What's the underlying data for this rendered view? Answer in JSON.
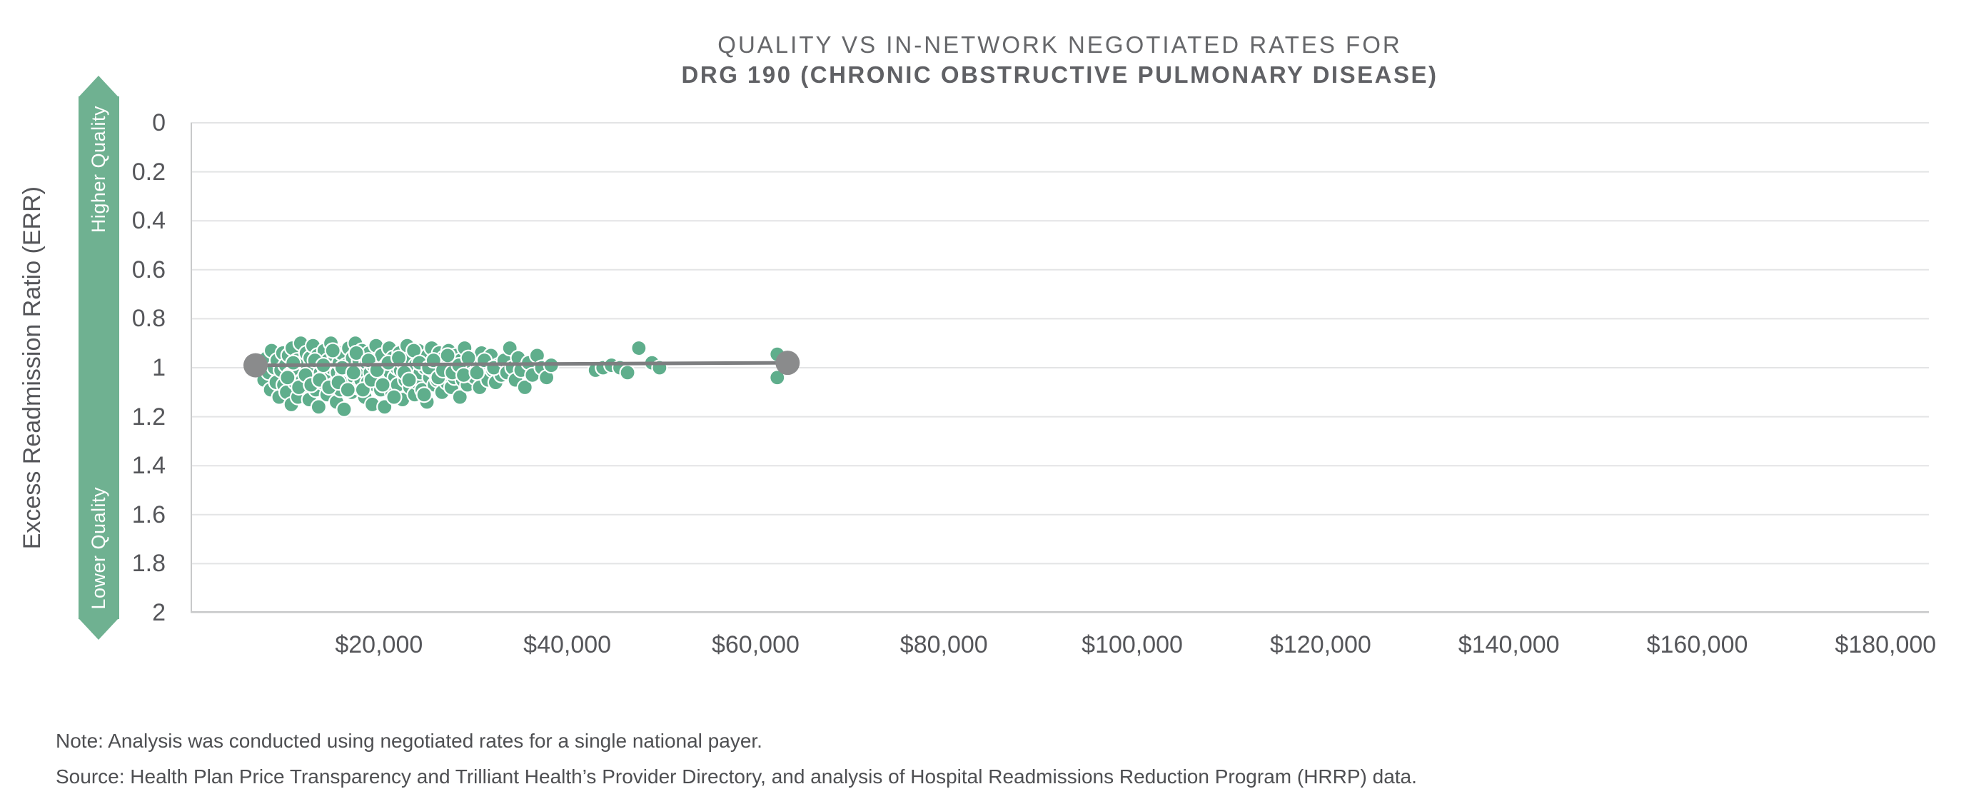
{
  "title": {
    "line1": "QUALITY VS IN-NETWORK NEGOTIATED RATES FOR",
    "line2": "DRG 190 (CHRONIC OBSTRUCTIVE PULMONARY DISEASE)"
  },
  "quality_arrow": {
    "top_label": "Higher Quality",
    "bottom_label": "Lower Quality",
    "color": "#6fb191"
  },
  "y_axis": {
    "title": "Excess Readmission Ratio (ERR)",
    "tick_labels": [
      "0",
      "0.2",
      "0.4",
      "0.6",
      "0.8",
      "1",
      "1.2",
      "1.4",
      "1.6",
      "1.8",
      "2"
    ],
    "tick_values": [
      0,
      0.2,
      0.4,
      0.6,
      0.8,
      1,
      1.2,
      1.4,
      1.6,
      1.8,
      2
    ]
  },
  "x_axis": {
    "tick_labels": [
      "$20,000",
      "$40,000",
      "$60,000",
      "$80,000",
      "$100,000",
      "$120,000",
      "$140,000",
      "$160,000",
      "$180,000"
    ],
    "tick_values": [
      20000,
      40000,
      60000,
      80000,
      100000,
      120000,
      140000,
      160000,
      180000
    ]
  },
  "notes": {
    "note": "Note: Analysis was conducted using negotiated rates for a single national payer.",
    "source": "Source: Health Plan Price Transparency and Trilliant Health’s Provider Directory, and analysis of Hospital Readmissions Reduction Program (HRRP) data."
  },
  "colors": {
    "point_fill": "#5fae8c",
    "point_stroke": "#ffffff",
    "trend_line": "#7d7e80",
    "trend_endpoint": "#8a8b8c",
    "gridline": "#e3e4e5",
    "axis_border": "#c8c9ca",
    "title_text": "#66676a",
    "tick_text": "#55565a",
    "arrow_green": "#6fb191"
  },
  "chart_data": {
    "type": "scatter",
    "title": "QUALITY VS IN-NETWORK NEGOTIATED RATES FOR DRG 190 (CHRONIC OBSTRUCTIVE PULMONARY DISEASE)",
    "xlabel": "",
    "ylabel": "Excess Readmission Ratio (ERR)",
    "x_range": [
      0,
      184600
    ],
    "y_range": [
      0,
      2
    ],
    "y_axis_inverted": true,
    "grid": "horizontal-only",
    "legend": "none",
    "trend_line": {
      "points": [
        [
          6900,
          0.99
        ],
        [
          63400,
          0.98
        ]
      ]
    },
    "points": [
      [
        7600,
        0.99
      ],
      [
        7800,
        1.05
      ],
      [
        8100,
        0.96
      ],
      [
        8300,
        1.02
      ],
      [
        8500,
        1.09
      ],
      [
        8600,
        0.93
      ],
      [
        8900,
        1.0
      ],
      [
        9100,
        1.06
      ],
      [
        9200,
        0.97
      ],
      [
        9400,
        1.12
      ],
      [
        9600,
        1.01
      ],
      [
        9800,
        0.94
      ],
      [
        9900,
        1.07
      ],
      [
        10100,
        0.99
      ],
      [
        10200,
        1.1
      ],
      [
        10400,
        0.95
      ],
      [
        10500,
        1.03
      ],
      [
        10700,
        1.15
      ],
      [
        10800,
        0.92
      ],
      [
        11000,
        1.0
      ],
      [
        11100,
        1.06
      ],
      [
        11300,
        0.97
      ],
      [
        11400,
        1.12
      ],
      [
        11600,
        1.02
      ],
      [
        11700,
        0.9
      ],
      [
        11900,
        1.05
      ],
      [
        12000,
        0.98
      ],
      [
        12100,
        1.08
      ],
      [
        12300,
        0.94
      ],
      [
        12400,
        1.01
      ],
      [
        12600,
        1.13
      ],
      [
        12700,
        0.96
      ],
      [
        12900,
        1.04
      ],
      [
        13000,
        0.91
      ],
      [
        13100,
        1.0
      ],
      [
        13300,
        1.09
      ],
      [
        13500,
        0.95
      ],
      [
        13600,
        1.16
      ],
      [
        13800,
        1.02
      ],
      [
        13900,
        0.98
      ],
      [
        14000,
        1.06
      ],
      [
        14200,
        0.93
      ],
      [
        14300,
        1.01
      ],
      [
        14500,
        1.11
      ],
      [
        14600,
        0.97
      ],
      [
        14800,
        1.04
      ],
      [
        14900,
        0.9
      ],
      [
        15000,
        1.0
      ],
      [
        15200,
        1.07
      ],
      [
        15300,
        0.95
      ],
      [
        15500,
        1.14
      ],
      [
        15600,
        1.02
      ],
      [
        15800,
        0.98
      ],
      [
        15900,
        1.09
      ],
      [
        16000,
        0.94
      ],
      [
        16200,
        1.03
      ],
      [
        16300,
        1.17
      ],
      [
        16500,
        0.99
      ],
      [
        16600,
        1.06
      ],
      [
        16800,
        0.92
      ],
      [
        16900,
        1.01
      ],
      [
        17100,
        1.1
      ],
      [
        17200,
        0.96
      ],
      [
        17400,
        1.04
      ],
      [
        17500,
        0.9
      ],
      [
        17700,
        1.0
      ],
      [
        17800,
        1.08
      ],
      [
        17900,
        0.97
      ],
      [
        18100,
        1.05
      ],
      [
        18200,
        0.93
      ],
      [
        18400,
        1.01
      ],
      [
        18500,
        1.12
      ],
      [
        18700,
        0.98
      ],
      [
        18800,
        1.06
      ],
      [
        19000,
        0.94
      ],
      [
        19100,
        1.02
      ],
      [
        19300,
        1.15
      ],
      [
        19400,
        0.99
      ],
      [
        19600,
        1.07
      ],
      [
        19700,
        0.91
      ],
      [
        19900,
        1.03
      ],
      [
        20000,
        0.97
      ],
      [
        20200,
        1.09
      ],
      [
        20300,
        0.95
      ],
      [
        20500,
        1.01
      ],
      [
        20600,
        1.16
      ],
      [
        20800,
        0.99
      ],
      [
        20900,
        1.05
      ],
      [
        21100,
        0.92
      ],
      [
        21200,
        1.02
      ],
      [
        21400,
        1.1
      ],
      [
        21500,
        0.96
      ],
      [
        21700,
        1.04
      ],
      [
        21900,
        1.0
      ],
      [
        22000,
        1.07
      ],
      [
        22200,
        0.94
      ],
      [
        22300,
        1.01
      ],
      [
        22500,
        1.13
      ],
      [
        22600,
        0.98
      ],
      [
        22800,
        1.05
      ],
      [
        23000,
        0.91
      ],
      [
        23100,
        1.0
      ],
      [
        23300,
        1.08
      ],
      [
        23400,
        0.96
      ],
      [
        23600,
        1.03
      ],
      [
        23800,
        1.11
      ],
      [
        23900,
        0.99
      ],
      [
        24100,
        1.06
      ],
      [
        24200,
        0.93
      ],
      [
        24400,
        1.02
      ],
      [
        24600,
        1.09
      ],
      [
        24700,
        0.97
      ],
      [
        24900,
        1.0
      ],
      [
        25100,
        1.14
      ],
      [
        25200,
        0.95
      ],
      [
        25400,
        1.04
      ],
      [
        25600,
        0.92
      ],
      [
        25700,
        1.01
      ],
      [
        25900,
        1.07
      ],
      [
        26000,
        0.98
      ],
      [
        26200,
        1.05
      ],
      [
        26400,
        0.94
      ],
      [
        26500,
        1.02
      ],
      [
        26700,
        1.1
      ],
      [
        26900,
        0.96
      ],
      [
        27000,
        1.0
      ],
      [
        27200,
        1.06
      ],
      [
        27400,
        0.93
      ],
      [
        27500,
        1.03
      ],
      [
        27700,
        1.08
      ],
      [
        27900,
        0.99
      ],
      [
        28000,
        1.04
      ],
      [
        28200,
        0.95
      ],
      [
        28400,
        1.01
      ],
      [
        28600,
        1.12
      ],
      [
        28700,
        0.97
      ],
      [
        28900,
        1.05
      ],
      [
        29100,
        0.92
      ],
      [
        29200,
        1.0
      ],
      [
        29400,
        1.07
      ],
      [
        29600,
        0.98
      ],
      [
        29800,
        1.03
      ],
      [
        30000,
        0.96
      ],
      [
        30200,
        1.04
      ],
      [
        30500,
        1.0
      ],
      [
        30700,
        1.08
      ],
      [
        30900,
        0.94
      ],
      [
        31100,
        1.02
      ],
      [
        31400,
        0.98
      ],
      [
        31600,
        1.05
      ],
      [
        31900,
        0.95
      ],
      [
        32100,
        1.01
      ],
      [
        32400,
        1.06
      ],
      [
        32700,
        0.99
      ],
      [
        33000,
        1.03
      ],
      [
        10300,
        1.04
      ],
      [
        10900,
        0.98
      ],
      [
        11500,
        1.08
      ],
      [
        12200,
        1.03
      ],
      [
        12800,
        1.07
      ],
      [
        13200,
        0.97
      ],
      [
        13700,
        1.05
      ],
      [
        14100,
        0.99
      ],
      [
        14700,
        1.08
      ],
      [
        15100,
        0.93
      ],
      [
        15700,
        1.06
      ],
      [
        16100,
        1.0
      ],
      [
        16700,
        1.09
      ],
      [
        17300,
        1.02
      ],
      [
        17600,
        0.94
      ],
      [
        18300,
        1.09
      ],
      [
        18900,
        0.97
      ],
      [
        19200,
        1.05
      ],
      [
        19800,
        1.01
      ],
      [
        20400,
        1.07
      ],
      [
        21000,
        0.98
      ],
      [
        21600,
        1.12
      ],
      [
        22100,
        0.96
      ],
      [
        22700,
        1.02
      ],
      [
        23200,
        1.05
      ],
      [
        23700,
        0.93
      ],
      [
        24300,
        0.98
      ],
      [
        24800,
        1.11
      ],
      [
        25300,
        1.0
      ],
      [
        25800,
        0.97
      ],
      [
        26300,
        1.04
      ],
      [
        26800,
        1.01
      ],
      [
        27300,
        0.95
      ],
      [
        27800,
        1.02
      ],
      [
        28500,
        0.99
      ],
      [
        29000,
        1.03
      ],
      [
        29500,
        0.96
      ],
      [
        30400,
        1.02
      ],
      [
        31200,
        0.97
      ],
      [
        32200,
        1.0
      ],
      [
        33300,
        0.97
      ],
      [
        33600,
        1.02
      ],
      [
        33900,
        0.92
      ],
      [
        34200,
        1.0
      ],
      [
        34500,
        1.05
      ],
      [
        34800,
        0.96
      ],
      [
        35100,
        1.01
      ],
      [
        35500,
        1.08
      ],
      [
        35900,
        0.98
      ],
      [
        36300,
        1.03
      ],
      [
        36800,
        0.95
      ],
      [
        37300,
        1.0
      ],
      [
        37800,
        1.04
      ],
      [
        38300,
        0.99
      ],
      [
        43000,
        1.01
      ],
      [
        43800,
        1.0
      ],
      [
        44700,
        0.99
      ],
      [
        45600,
        1.0
      ],
      [
        46400,
        1.02
      ],
      [
        47600,
        0.92
      ],
      [
        49000,
        0.98
      ],
      [
        49800,
        1.0
      ],
      [
        62300,
        0.945
      ],
      [
        62300,
        1.04
      ]
    ]
  }
}
